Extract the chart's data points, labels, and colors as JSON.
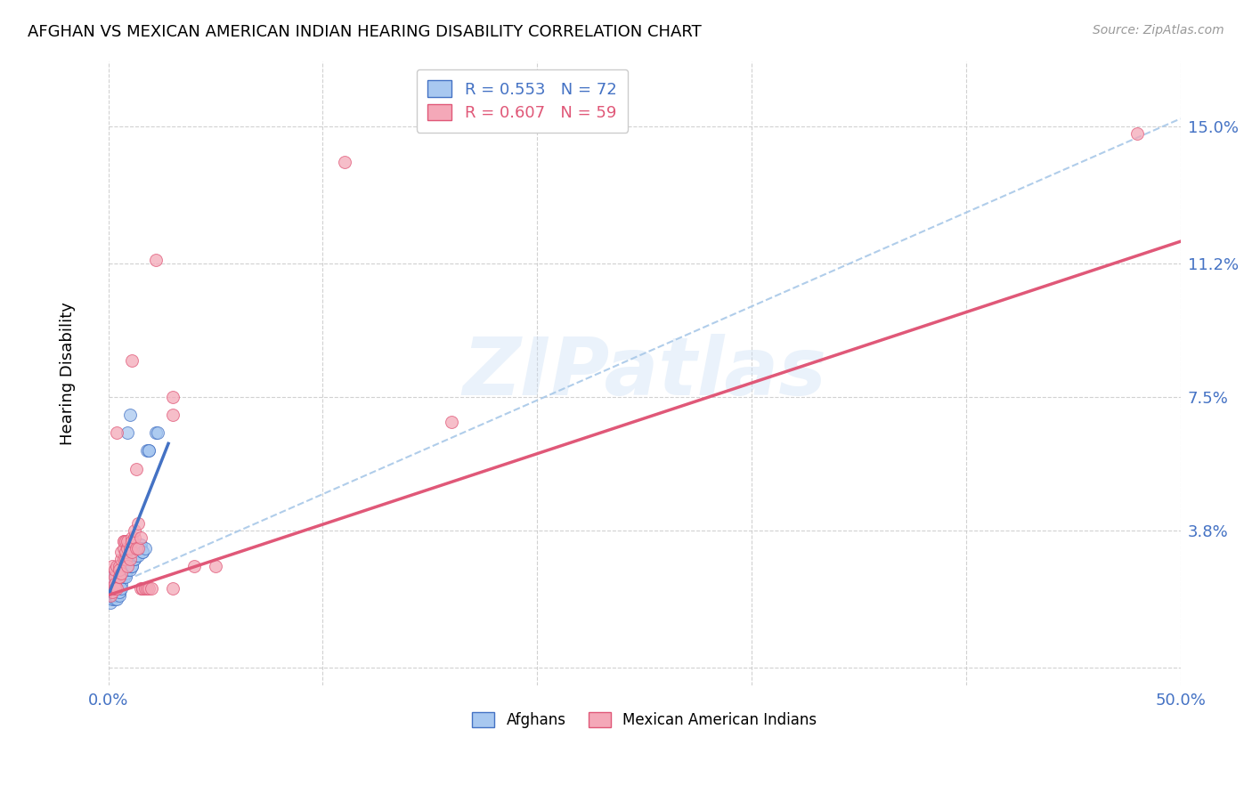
{
  "title": "AFGHAN VS MEXICAN AMERICAN INDIAN HEARING DISABILITY CORRELATION CHART",
  "source": "Source: ZipAtlas.com",
  "ylabel": "Hearing Disability",
  "xlim": [
    0.0,
    0.5
  ],
  "ylim": [
    -0.005,
    0.168
  ],
  "yticks": [
    0.0,
    0.038,
    0.075,
    0.112,
    0.15
  ],
  "ytick_labels": [
    "",
    "3.8%",
    "7.5%",
    "11.2%",
    "15.0%"
  ],
  "xticks": [
    0.0,
    0.1,
    0.2,
    0.3,
    0.4,
    0.5
  ],
  "xtick_labels": [
    "0.0%",
    "",
    "",
    "",
    "",
    "50.0%"
  ],
  "watermark": "ZIPatlas",
  "legend_r_blue": "R = 0.553",
  "legend_n_blue": "N = 72",
  "legend_r_pink": "R = 0.607",
  "legend_n_pink": "N = 59",
  "blue_color": "#a8c8f0",
  "pink_color": "#f4a8b8",
  "trendline_blue_color": "#4472c4",
  "trendline_pink_color": "#e05878",
  "dashed_line_color": "#a8c8e8",
  "tick_label_color": "#4472c4",
  "background_color": "#ffffff",
  "blue_scatter": [
    [
      0.001,
      0.02
    ],
    [
      0.001,
      0.022
    ],
    [
      0.001,
      0.018
    ],
    [
      0.002,
      0.025
    ],
    [
      0.002,
      0.021
    ],
    [
      0.002,
      0.023
    ],
    [
      0.002,
      0.019
    ],
    [
      0.002,
      0.024
    ],
    [
      0.002,
      0.022
    ],
    [
      0.003,
      0.021
    ],
    [
      0.003,
      0.023
    ],
    [
      0.003,
      0.025
    ],
    [
      0.003,
      0.019
    ],
    [
      0.003,
      0.02
    ],
    [
      0.003,
      0.022
    ],
    [
      0.003,
      0.026
    ],
    [
      0.003,
      0.02
    ],
    [
      0.004,
      0.021
    ],
    [
      0.004,
      0.022
    ],
    [
      0.004,
      0.024
    ],
    [
      0.004,
      0.021
    ],
    [
      0.004,
      0.02
    ],
    [
      0.004,
      0.022
    ],
    [
      0.004,
      0.025
    ],
    [
      0.004,
      0.019
    ],
    [
      0.005,
      0.021
    ],
    [
      0.005,
      0.023
    ],
    [
      0.005,
      0.02
    ],
    [
      0.005,
      0.022
    ],
    [
      0.005,
      0.021
    ],
    [
      0.005,
      0.024
    ],
    [
      0.005,
      0.026
    ],
    [
      0.006,
      0.025
    ],
    [
      0.006,
      0.025
    ],
    [
      0.006,
      0.027
    ],
    [
      0.006,
      0.023
    ],
    [
      0.006,
      0.025
    ],
    [
      0.006,
      0.022
    ],
    [
      0.007,
      0.028
    ],
    [
      0.007,
      0.026
    ],
    [
      0.007,
      0.027
    ],
    [
      0.007,
      0.025
    ],
    [
      0.008,
      0.026
    ],
    [
      0.008,
      0.028
    ],
    [
      0.008,
      0.027
    ],
    [
      0.008,
      0.03
    ],
    [
      0.008,
      0.025
    ],
    [
      0.009,
      0.028
    ],
    [
      0.009,
      0.03
    ],
    [
      0.009,
      0.027
    ],
    [
      0.01,
      0.027
    ],
    [
      0.01,
      0.028
    ],
    [
      0.011,
      0.028
    ],
    [
      0.011,
      0.028
    ],
    [
      0.012,
      0.03
    ],
    [
      0.012,
      0.03
    ],
    [
      0.013,
      0.031
    ],
    [
      0.013,
      0.033
    ],
    [
      0.014,
      0.033
    ],
    [
      0.014,
      0.031
    ],
    [
      0.015,
      0.034
    ],
    [
      0.015,
      0.033
    ],
    [
      0.016,
      0.032
    ],
    [
      0.016,
      0.032
    ],
    [
      0.017,
      0.033
    ],
    [
      0.018,
      0.06
    ],
    [
      0.019,
      0.06
    ],
    [
      0.019,
      0.06
    ],
    [
      0.009,
      0.065
    ],
    [
      0.01,
      0.07
    ],
    [
      0.022,
      0.065
    ],
    [
      0.023,
      0.065
    ]
  ],
  "pink_scatter": [
    [
      0.001,
      0.022
    ],
    [
      0.001,
      0.02
    ],
    [
      0.002,
      0.025
    ],
    [
      0.002,
      0.021
    ],
    [
      0.002,
      0.028
    ],
    [
      0.003,
      0.022
    ],
    [
      0.003,
      0.025
    ],
    [
      0.003,
      0.023
    ],
    [
      0.003,
      0.027
    ],
    [
      0.003,
      0.022
    ],
    [
      0.004,
      0.028
    ],
    [
      0.004,
      0.022
    ],
    [
      0.004,
      0.065
    ],
    [
      0.005,
      0.025
    ],
    [
      0.005,
      0.028
    ],
    [
      0.005,
      0.025
    ],
    [
      0.005,
      0.027
    ],
    [
      0.006,
      0.026
    ],
    [
      0.006,
      0.03
    ],
    [
      0.006,
      0.032
    ],
    [
      0.007,
      0.03
    ],
    [
      0.007,
      0.035
    ],
    [
      0.007,
      0.033
    ],
    [
      0.007,
      0.035
    ],
    [
      0.008,
      0.03
    ],
    [
      0.008,
      0.035
    ],
    [
      0.008,
      0.032
    ],
    [
      0.009,
      0.033
    ],
    [
      0.009,
      0.028
    ],
    [
      0.009,
      0.035
    ],
    [
      0.01,
      0.03
    ],
    [
      0.01,
      0.033
    ],
    [
      0.011,
      0.085
    ],
    [
      0.011,
      0.036
    ],
    [
      0.011,
      0.032
    ],
    [
      0.011,
      0.035
    ],
    [
      0.012,
      0.036
    ],
    [
      0.012,
      0.038
    ],
    [
      0.013,
      0.033
    ],
    [
      0.013,
      0.055
    ],
    [
      0.014,
      0.04
    ],
    [
      0.014,
      0.033
    ],
    [
      0.015,
      0.036
    ],
    [
      0.015,
      0.022
    ],
    [
      0.016,
      0.022
    ],
    [
      0.016,
      0.022
    ],
    [
      0.017,
      0.022
    ],
    [
      0.018,
      0.022
    ],
    [
      0.019,
      0.022
    ],
    [
      0.02,
      0.022
    ],
    [
      0.022,
      0.113
    ],
    [
      0.03,
      0.022
    ],
    [
      0.04,
      0.028
    ],
    [
      0.05,
      0.028
    ],
    [
      0.03,
      0.07
    ],
    [
      0.03,
      0.075
    ],
    [
      0.11,
      0.14
    ],
    [
      0.16,
      0.068
    ],
    [
      0.48,
      0.148
    ]
  ],
  "blue_trendline_x": [
    0.0,
    0.028
  ],
  "blue_trendline_y": [
    0.02,
    0.062
  ],
  "pink_trendline_x": [
    0.0,
    0.5
  ],
  "pink_trendline_y": [
    0.02,
    0.118
  ],
  "dashed_line_x": [
    0.0,
    0.5
  ],
  "dashed_line_y": [
    0.022,
    0.152
  ]
}
